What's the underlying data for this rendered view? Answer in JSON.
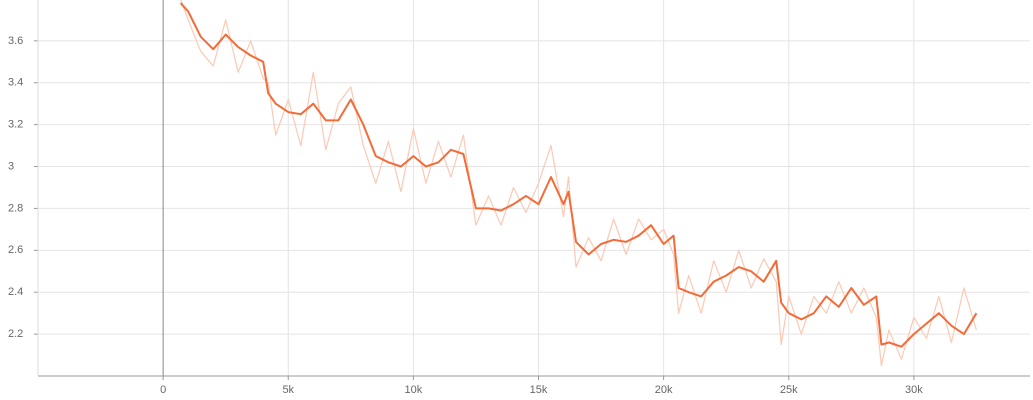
{
  "chart_data": {
    "type": "line",
    "xlim": [
      -5000,
      34640
    ],
    "ylim": [
      2.0,
      3.795
    ],
    "xticks": [
      {
        "value": 0,
        "label": "0"
      },
      {
        "value": 5000,
        "label": "5k"
      },
      {
        "value": 10000,
        "label": "10k"
      },
      {
        "value": 15000,
        "label": "15k"
      },
      {
        "value": 20000,
        "label": "20k"
      },
      {
        "value": 25000,
        "label": "25k"
      },
      {
        "value": 30000,
        "label": "30k"
      }
    ],
    "yticks": [
      2.2,
      2.4,
      2.6,
      2.8,
      3,
      3.2,
      3.4,
      3.6
    ],
    "grid": true,
    "x": [
      700,
      1000,
      1500,
      2000,
      2500,
      3000,
      3500,
      4000,
      4200,
      4500,
      5000,
      5500,
      6000,
      6500,
      7000,
      7500,
      8000,
      8500,
      9000,
      9500,
      10000,
      10500,
      11000,
      11500,
      12000,
      12500,
      13000,
      13500,
      14000,
      14500,
      15000,
      15500,
      16000,
      16200,
      16500,
      17000,
      17500,
      18000,
      18500,
      19000,
      19500,
      20000,
      20400,
      20600,
      21000,
      21500,
      22000,
      22500,
      23000,
      23500,
      24000,
      24500,
      24700,
      25000,
      25500,
      26000,
      26500,
      27000,
      27500,
      28000,
      28500,
      28700,
      29000,
      29500,
      30000,
      30500,
      31000,
      31500,
      32000,
      32500
    ],
    "series": [
      {
        "color": "#fbc9b4",
        "values": [
          3.8,
          3.7,
          3.55,
          3.48,
          3.7,
          3.45,
          3.6,
          3.42,
          3.4,
          3.15,
          3.32,
          3.1,
          3.45,
          3.08,
          3.3,
          3.38,
          3.1,
          2.92,
          3.12,
          2.88,
          3.18,
          2.92,
          3.12,
          2.95,
          3.15,
          2.72,
          2.86,
          2.72,
          2.9,
          2.78,
          2.92,
          3.1,
          2.76,
          2.95,
          2.52,
          2.66,
          2.55,
          2.75,
          2.58,
          2.75,
          2.65,
          2.7,
          2.58,
          2.3,
          2.48,
          2.3,
          2.55,
          2.4,
          2.6,
          2.42,
          2.56,
          2.45,
          2.15,
          2.38,
          2.2,
          2.38,
          2.3,
          2.45,
          2.3,
          2.42,
          2.28,
          2.05,
          2.22,
          2.08,
          2.28,
          2.18,
          2.38,
          2.16,
          2.42,
          2.22
        ]
      },
      {
        "color": "#f26b38",
        "values": [
          3.78,
          3.74,
          3.62,
          3.56,
          3.63,
          3.57,
          3.53,
          3.5,
          3.35,
          3.3,
          3.26,
          3.25,
          3.3,
          3.22,
          3.22,
          3.32,
          3.2,
          3.05,
          3.02,
          3.0,
          3.05,
          3.0,
          3.02,
          3.08,
          3.06,
          2.8,
          2.8,
          2.79,
          2.82,
          2.86,
          2.82,
          2.95,
          2.82,
          2.88,
          2.64,
          2.58,
          2.63,
          2.65,
          2.64,
          2.67,
          2.72,
          2.63,
          2.67,
          2.42,
          2.4,
          2.38,
          2.45,
          2.48,
          2.52,
          2.5,
          2.45,
          2.55,
          2.35,
          2.3,
          2.27,
          2.3,
          2.38,
          2.33,
          2.42,
          2.34,
          2.38,
          2.15,
          2.16,
          2.14,
          2.2,
          2.25,
          2.3,
          2.24,
          2.2,
          2.3
        ]
      }
    ]
  }
}
